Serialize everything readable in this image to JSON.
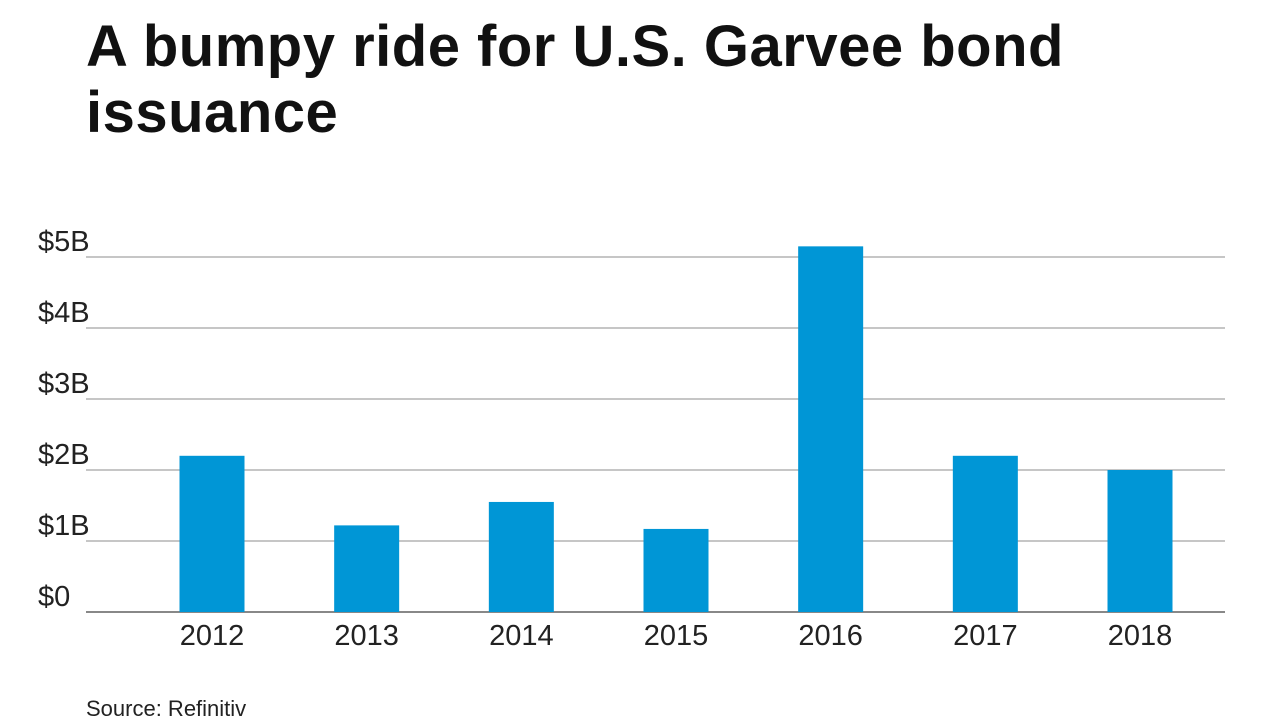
{
  "header": {
    "title": "A bumpy ride for U.S. Garvee bond issuance"
  },
  "footer": {
    "source": "Source: Refinitiv"
  },
  "chart_data": {
    "type": "bar",
    "title": "A bumpy ride for U.S. Garvee bond issuance",
    "categories": [
      "2012",
      "2013",
      "2014",
      "2015",
      "2016",
      "2017",
      "2018"
    ],
    "values": [
      2.2,
      1.22,
      1.55,
      1.17,
      5.15,
      2.2,
      2.0
    ],
    "unit": "billions of dollars",
    "ylim": [
      0,
      5
    ],
    "yticks": [
      {
        "value": 0,
        "label": "$0"
      },
      {
        "value": 1,
        "label": "$1B"
      },
      {
        "value": 2,
        "label": "$2B"
      },
      {
        "value": 3,
        "label": "$3B"
      },
      {
        "value": 4,
        "label": "$4B"
      },
      {
        "value": 5,
        "label": "$5B"
      }
    ],
    "grid": true,
    "legend": "none",
    "colors": {
      "bar": "#0096d6",
      "grid": "#b3b3b3",
      "axis": "#888888",
      "text": "#222222"
    }
  }
}
